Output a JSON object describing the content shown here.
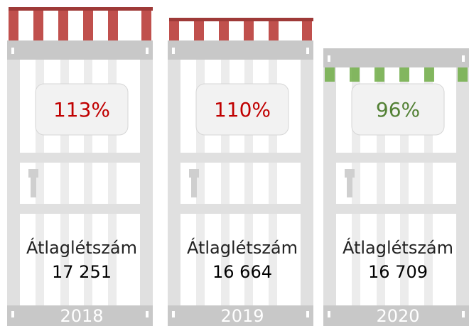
{
  "chart_data": {
    "type": "pictorial",
    "categories": [
      "2018",
      "2019",
      "2020"
    ],
    "values": [
      113,
      110,
      96
    ],
    "value_labels": [
      "113%",
      "110%",
      "96%"
    ],
    "colors": [
      "#c0504d",
      "#c0504d",
      "#70ad47"
    ],
    "label_colors": [
      "#c00000",
      "#c00000",
      "#538135"
    ],
    "ylim": [
      80,
      115
    ],
    "threshold": 100,
    "headcount_title": "Átlaglétszám",
    "headcounts": [
      "17 251",
      "16 664",
      "16 709"
    ]
  }
}
